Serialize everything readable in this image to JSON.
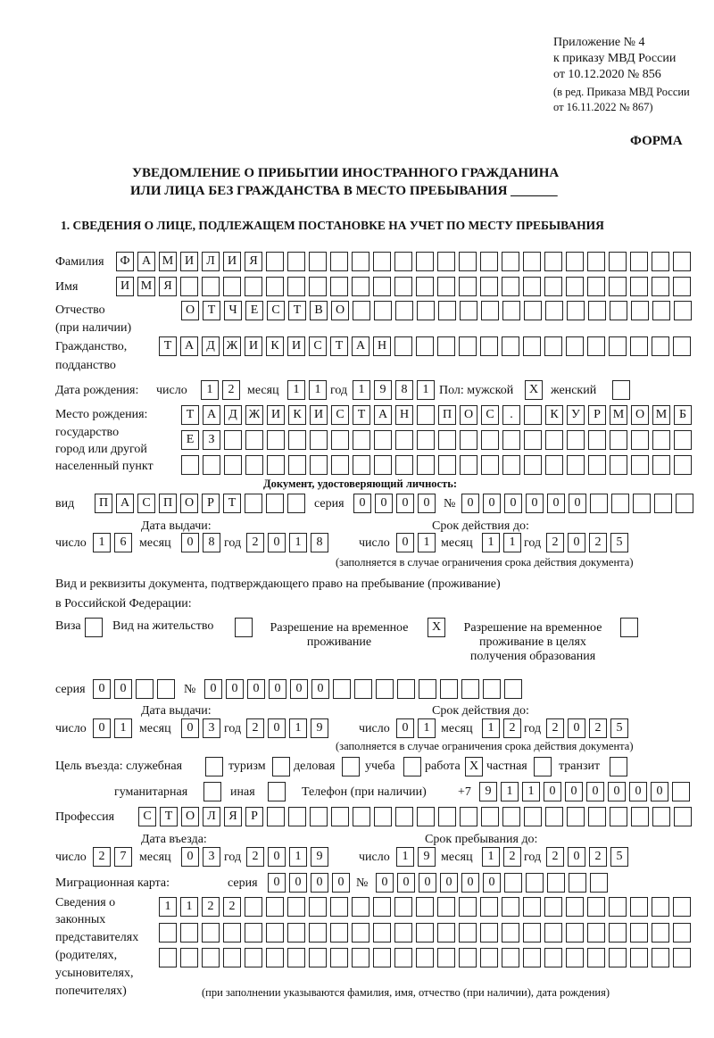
{
  "header": {
    "line1": "Приложение № 4",
    "line2": "к приказу МВД России",
    "line3": "от 10.12.2020 № 856",
    "line4": "(в ред. Приказа МВД России",
    "line5": "от 16.11.2022 № 867)",
    "forma": "ФОРМА",
    "title1": "УВЕДОМЛЕНИЕ О ПРИБЫТИИ ИНОСТРАННОГО ГРАЖДАНИНА",
    "title2": "ИЛИ ЛИЦА БЕЗ ГРАЖДАНСТВА В МЕСТО ПРЕБЫВАНИЯ _______",
    "section1": "1. СВЕДЕНИЯ О ЛИЦЕ, ПОДЛЕЖАЩЕМ ПОСТАНОВКЕ НА УЧЕТ ПО МЕСТУ ПРЕБЫВАНИЯ"
  },
  "labels": {
    "surname": "Фамилия",
    "name": "Имя",
    "patronymic": "Отчество",
    "patronymic_note": "(при наличии)",
    "citizenship1": "Гражданство,",
    "citizenship2": "подданство",
    "birth_date": "Дата рождения:",
    "day": "число",
    "month": "месяц",
    "year": "год",
    "sex": "Пол: мужской",
    "female": "женский",
    "birthplace1": "Место рождения:",
    "birthplace2": "государство",
    "birthplace3": "город или другой",
    "birthplace4": "населенный пункт",
    "id_doc": "Документ, удостоверяющий личность:",
    "kind": "вид",
    "series": "серия",
    "number": "№",
    "issue_date": "Дата выдачи:",
    "valid_until": "Срок действия до:",
    "validity_note": "(заполняется в случае ограничения срока действия документа)",
    "right_doc1": "Вид и реквизиты документа, подтверждающего право на пребывание (проживание)",
    "right_doc2": "в Российской Федерации:",
    "visa": "Виза",
    "residence": "Вид на жительство",
    "temp1a": "Разрешение на временное",
    "temp1b": "проживание",
    "temp2a": "Разрешение на временное",
    "temp2b": "проживание в целях",
    "temp2c": "получения образования",
    "purpose": "Цель въезда: служебная",
    "tourism": "туризм",
    "business": "деловая",
    "study": "учеба",
    "work": "работа",
    "private": "частная",
    "transit": "транзит",
    "humanitarian": "гуманитарная",
    "other": "иная",
    "phone": "Телефон (при наличии)",
    "phone_prefix": "+7",
    "profession": "Профессия",
    "entry_date": "Дата въезда:",
    "stay_until": "Срок пребывания до:",
    "migration_card": "Миграционная карта:",
    "reps1": "Сведения о",
    "reps2": "законных",
    "reps3": "представителях",
    "reps4": "(родителях,",
    "reps5": "усыновителях,",
    "reps6": "попечителях)",
    "reps_note": "(при заполнении указываются фамилия, имя, отчество (при наличии), дата рождения)"
  },
  "person": {
    "surname": [
      "Ф",
      "А",
      "М",
      "И",
      "Л",
      "И",
      "Я",
      "",
      "",
      "",
      "",
      "",
      "",
      "",
      "",
      "",
      "",
      "",
      "",
      "",
      "",
      "",
      "",
      "",
      "",
      "",
      ""
    ],
    "name": [
      "И",
      "М",
      "Я",
      "",
      "",
      "",
      "",
      "",
      "",
      "",
      "",
      "",
      "",
      "",
      "",
      "",
      "",
      "",
      "",
      "",
      "",
      "",
      "",
      "",
      "",
      "",
      ""
    ],
    "patronymic": [
      "О",
      "Т",
      "Ч",
      "Е",
      "С",
      "Т",
      "В",
      "О",
      "",
      "",
      "",
      "",
      "",
      "",
      "",
      "",
      "",
      "",
      "",
      "",
      "",
      "",
      "",
      ""
    ],
    "citizenship": [
      "Т",
      "А",
      "Д",
      "Ж",
      "И",
      "К",
      "И",
      "С",
      "Т",
      "А",
      "Н",
      "",
      "",
      "",
      "",
      "",
      "",
      "",
      "",
      "",
      "",
      "",
      "",
      "",
      ""
    ],
    "birth_day": [
      "1",
      "2"
    ],
    "birth_month": [
      "1",
      "1"
    ],
    "birth_year": [
      "1",
      "9",
      "8",
      "1"
    ],
    "male": [
      "X"
    ],
    "female": [
      ""
    ],
    "birthplace_row1": [
      "Т",
      "А",
      "Д",
      "Ж",
      "И",
      "К",
      "И",
      "С",
      "Т",
      "А",
      "Н",
      "",
      "П",
      "О",
      "С",
      ".",
      "",
      "К",
      "У",
      "Р",
      "М",
      "О",
      "М",
      "Б"
    ],
    "birthplace_row2": [
      "Е",
      "З",
      "",
      "",
      "",
      "",
      "",
      "",
      "",
      "",
      "",
      "",
      "",
      "",
      "",
      "",
      "",
      "",
      "",
      "",
      "",
      "",
      "",
      ""
    ],
    "birthplace_row3": [
      "",
      "",
      "",
      "",
      "",
      "",
      "",
      "",
      "",
      "",
      "",
      "",
      "",
      "",
      "",
      "",
      "",
      "",
      "",
      "",
      "",
      "",
      "",
      ""
    ]
  },
  "id_document": {
    "kind": [
      "П",
      "А",
      "С",
      "П",
      "О",
      "Р",
      "Т",
      "",
      "",
      ""
    ],
    "series": [
      "0",
      "0",
      "0",
      "0"
    ],
    "number": [
      "0",
      "0",
      "0",
      "0",
      "0",
      "0",
      "",
      "",
      "",
      "",
      ""
    ],
    "issue_day": [
      "1",
      "6"
    ],
    "issue_month": [
      "0",
      "8"
    ],
    "issue_year": [
      "2",
      "0",
      "1",
      "8"
    ],
    "valid_day": [
      "0",
      "1"
    ],
    "valid_month": [
      "1",
      "1"
    ],
    "valid_year": [
      "2",
      "0",
      "2",
      "5"
    ]
  },
  "right_document": {
    "visa": [
      ""
    ],
    "residence": [
      ""
    ],
    "temp_residence": [
      "X"
    ],
    "temp_residence_edu": [
      ""
    ],
    "series": [
      "0",
      "0",
      "",
      ""
    ],
    "number": [
      "0",
      "0",
      "0",
      "0",
      "0",
      "0",
      "",
      "",
      "",
      "",
      "",
      "",
      "",
      "",
      ""
    ],
    "issue_day": [
      "0",
      "1"
    ],
    "issue_month": [
      "0",
      "3"
    ],
    "issue_year": [
      "2",
      "0",
      "1",
      "9"
    ],
    "valid_day": [
      "0",
      "1"
    ],
    "valid_month": [
      "1",
      "2"
    ],
    "valid_year": [
      "2",
      "0",
      "2",
      "5"
    ]
  },
  "purpose": {
    "official": [
      ""
    ],
    "tourism": [
      ""
    ],
    "business": [
      ""
    ],
    "study": [
      ""
    ],
    "work": [
      "X"
    ],
    "private": [
      ""
    ],
    "transit": [
      ""
    ],
    "humanitarian": [
      ""
    ],
    "other": [
      ""
    ]
  },
  "phone": [
    "9",
    "1",
    "1",
    "0",
    "0",
    "0",
    "0",
    "0",
    "0",
    ""
  ],
  "profession": [
    "С",
    "Т",
    "О",
    "Л",
    "Я",
    "Р",
    "",
    "",
    "",
    "",
    "",
    "",
    "",
    "",
    "",
    "",
    "",
    "",
    "",
    "",
    "",
    "",
    "",
    "",
    "",
    ""
  ],
  "entry": {
    "entry_day": [
      "2",
      "7"
    ],
    "entry_month": [
      "0",
      "3"
    ],
    "entry_year": [
      "2",
      "0",
      "1",
      "9"
    ],
    "stay_day": [
      "1",
      "9"
    ],
    "stay_month": [
      "1",
      "2"
    ],
    "stay_year": [
      "2",
      "0",
      "2",
      "5"
    ]
  },
  "migration_card": {
    "series": [
      "0",
      "0",
      "0",
      "0"
    ],
    "number": [
      "0",
      "0",
      "0",
      "0",
      "0",
      "0",
      "",
      "",
      "",
      "",
      ""
    ]
  },
  "representatives": {
    "row1": [
      "1",
      "1",
      "2",
      "2",
      "",
      "",
      "",
      "",
      "",
      "",
      "",
      "",
      "",
      "",
      "",
      "",
      "",
      "",
      "",
      "",
      "",
      "",
      "",
      "",
      ""
    ],
    "row2": [
      "",
      "",
      "",
      "",
      "",
      "",
      "",
      "",
      "",
      "",
      "",
      "",
      "",
      "",
      "",
      "",
      "",
      "",
      "",
      "",
      "",
      "",
      "",
      "",
      ""
    ],
    "row3": [
      "",
      "",
      "",
      "",
      "",
      "",
      "",
      "",
      "",
      "",
      "",
      "",
      "",
      "",
      "",
      "",
      "",
      "",
      "",
      "",
      "",
      "",
      "",
      "",
      ""
    ]
  }
}
